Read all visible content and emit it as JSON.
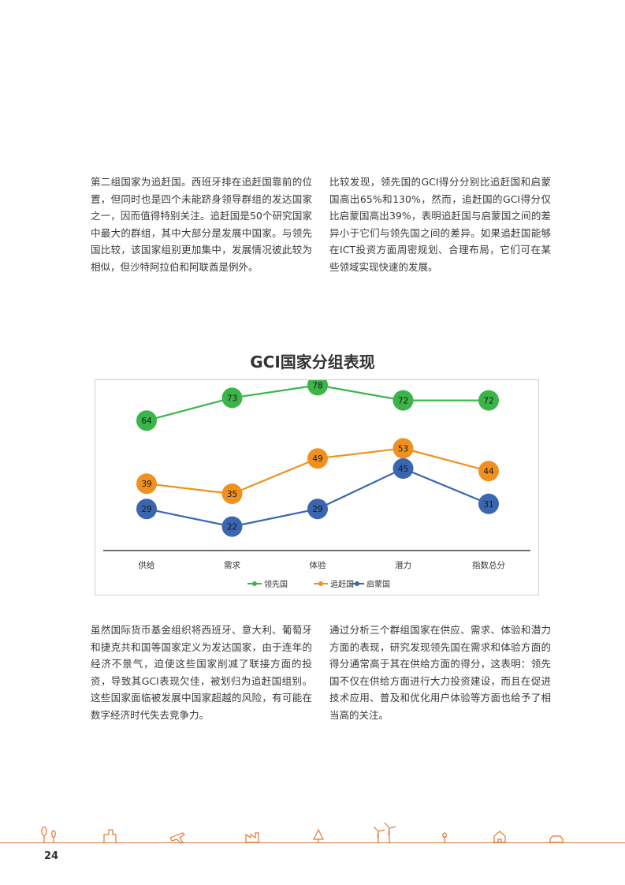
{
  "paragraphs": {
    "p1": "第二组国家为追赶国。西班牙排在追赶国靠前的位置，但同时也是四个未能跻身领导群组的发达国家之一，因而值得特别关注。追赶国是50个研究国家中最大的群组，其中大部分是发展中国家。与领先国比较，该国家组别更加集中，发展情况彼此较为相似，但沙特阿拉伯和阿联酋是例外。",
    "p2": "比较发现，领先国的GCI得分分别比追赶国和启蒙国高出65%和130%，然而，追赶国的GCI得分仅比启蒙国高出39%，表明追赶国与启蒙国之间的差异小于它们与领先国之间的差异。如果追赶国能够在ICT投资方面周密规划、合理布局，它们可在某些领域实现快速的发展。",
    "p3": "虽然国际货币基金组织将西班牙、意大利、葡萄牙和捷克共和国等国家定义为发达国家，由于连年的经济不景气，迫使这些国家削减了联接方面的投资，导致其GCI表现欠佳，被划归为追赶国组别。这些国家面临被发展中国家超越的风险，有可能在数字经济时代失去竞争力。",
    "p4": "通过分析三个群组国家在供应、需求、体验和潜力方面的表现，研究发现领先国在需求和体验方面的得分通常高于其在供给方面的得分，这表明：领先国不仅在供给方面进行大力投资建设，而且在促进技术应用、普及和优化用户体验等方面也给予了相当高的关注。"
  },
  "chart_data": {
    "type": "line",
    "title": "GCI国家分组表现",
    "categories": [
      "供给",
      "需求",
      "体验",
      "潜力",
      "指数总分"
    ],
    "series": [
      {
        "name": "领先国",
        "values": [
          64,
          73,
          78,
          72,
          72
        ],
        "color": "#3bb44a"
      },
      {
        "name": "追赶国",
        "values": [
          39,
          35,
          49,
          53,
          44
        ],
        "color": "#f0901e"
      },
      {
        "name": "启蒙国",
        "values": [
          29,
          22,
          29,
          45,
          31
        ],
        "color": "#3a66b0"
      }
    ],
    "grid": false,
    "legend_position": "bottom"
  },
  "footer": {
    "page_number": "24",
    "line_color": "#e07a3a"
  }
}
